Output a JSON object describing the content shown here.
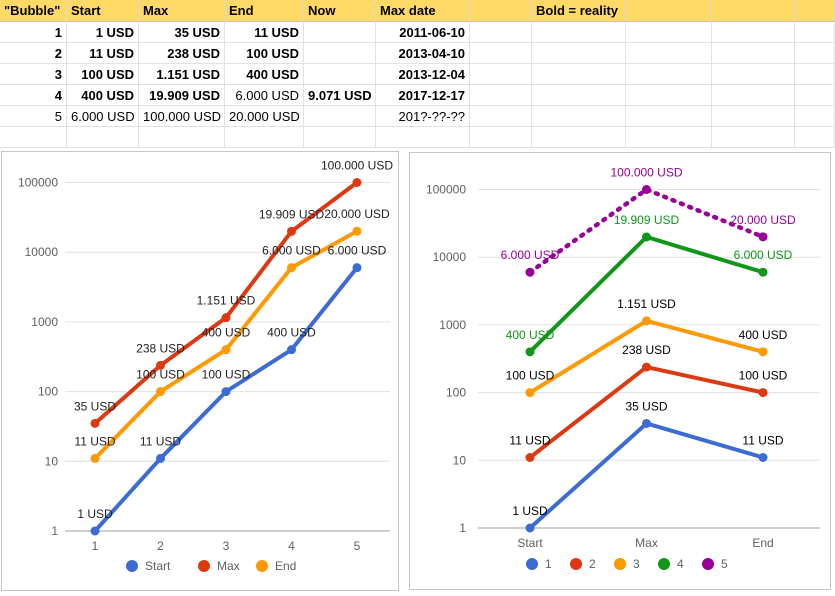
{
  "sheet": {
    "headers": [
      "\"Bubble\"",
      "Start",
      "Max",
      "End",
      "Now",
      "Max date",
      "",
      "Bold = reality",
      "",
      "",
      ""
    ],
    "rows": [
      {
        "bubble": "1",
        "start": "1 USD",
        "max": "35 USD",
        "end": "11 USD",
        "now": "",
        "max_date": "2011-06-10",
        "bold": [
          true,
          true,
          true,
          true,
          true,
          true
        ]
      },
      {
        "bubble": "2",
        "start": "11 USD",
        "max": "238 USD",
        "end": "100 USD",
        "now": "",
        "max_date": "2013-04-10",
        "bold": [
          true,
          true,
          true,
          true,
          true,
          true
        ]
      },
      {
        "bubble": "3",
        "start": "100 USD",
        "max": "1.151 USD",
        "end": "400 USD",
        "now": "",
        "max_date": "2013-12-04",
        "bold": [
          true,
          true,
          true,
          true,
          true,
          true
        ]
      },
      {
        "bubble": "4",
        "start": "400 USD",
        "max": "19.909 USD",
        "end": "6.000 USD",
        "now": "9.071 USD",
        "max_date": "2017-12-17",
        "bold": [
          true,
          true,
          true,
          false,
          true,
          true
        ]
      },
      {
        "bubble": "5",
        "start": "6.000 USD",
        "max": "100.000 USD",
        "end": "20.000 USD",
        "now": "",
        "max_date": "201?-??-??",
        "bold": [
          false,
          false,
          false,
          false,
          false,
          false
        ]
      }
    ]
  },
  "chart_data": [
    {
      "type": "line",
      "yscale": "log",
      "x": [
        "1",
        "2",
        "3",
        "4",
        "5"
      ],
      "yticks": [
        "1",
        "10",
        "100",
        "1000",
        "10000",
        "100000"
      ],
      "series": [
        {
          "name": "Start",
          "color": "#3c6bd4",
          "values": [
            1,
            11,
            100,
            400,
            6000
          ],
          "labels": [
            "1 USD",
            "11 USD",
            "100 USD",
            "400 USD",
            "6.000 USD"
          ]
        },
        {
          "name": "Max",
          "color": "#dc3912",
          "values": [
            35,
            238,
            1151,
            19909,
            100000
          ],
          "labels": [
            "35 USD",
            "238 USD",
            "1.151 USD",
            "19.909 USD",
            "100.000 USD"
          ]
        },
        {
          "name": "End",
          "color": "#ff9900",
          "values": [
            11,
            100,
            400,
            6000,
            20000
          ],
          "labels": [
            "11 USD",
            "100 USD",
            "400 USD",
            "6.000 USD",
            "20.000 USD"
          ]
        }
      ],
      "legend": "bottom"
    },
    {
      "type": "line",
      "yscale": "log",
      "x": [
        "Start",
        "Max",
        "End"
      ],
      "yticks": [
        "1",
        "10",
        "100",
        "1000",
        "10000",
        "100000"
      ],
      "series": [
        {
          "name": "1",
          "color": "#3c6bd4",
          "label_color": "#000000",
          "values": [
            1,
            35,
            11
          ],
          "labels": [
            "1 USD",
            "35 USD",
            "11 USD"
          ]
        },
        {
          "name": "2",
          "color": "#dc3912",
          "label_color": "#000000",
          "values": [
            11,
            238,
            100
          ],
          "labels": [
            "11 USD",
            "238 USD",
            "100 USD"
          ]
        },
        {
          "name": "3",
          "color": "#ff9900",
          "label_color": "#000000",
          "values": [
            100,
            1151,
            400
          ],
          "labels": [
            "100 USD",
            "1.151 USD",
            "400 USD"
          ]
        },
        {
          "name": "4",
          "color": "#109618",
          "label_color": "#109618",
          "values": [
            400,
            19909,
            6000
          ],
          "labels": [
            "400 USD",
            "19.909 USD",
            "6.000 USD"
          ]
        },
        {
          "name": "5",
          "color": "#990099",
          "label_color": "#990099",
          "dashed": true,
          "values": [
            6000,
            100000,
            20000
          ],
          "labels": [
            "6.000 USD",
            "100.000 USD",
            "20.000 USD"
          ]
        }
      ],
      "legend": "bottom"
    }
  ]
}
